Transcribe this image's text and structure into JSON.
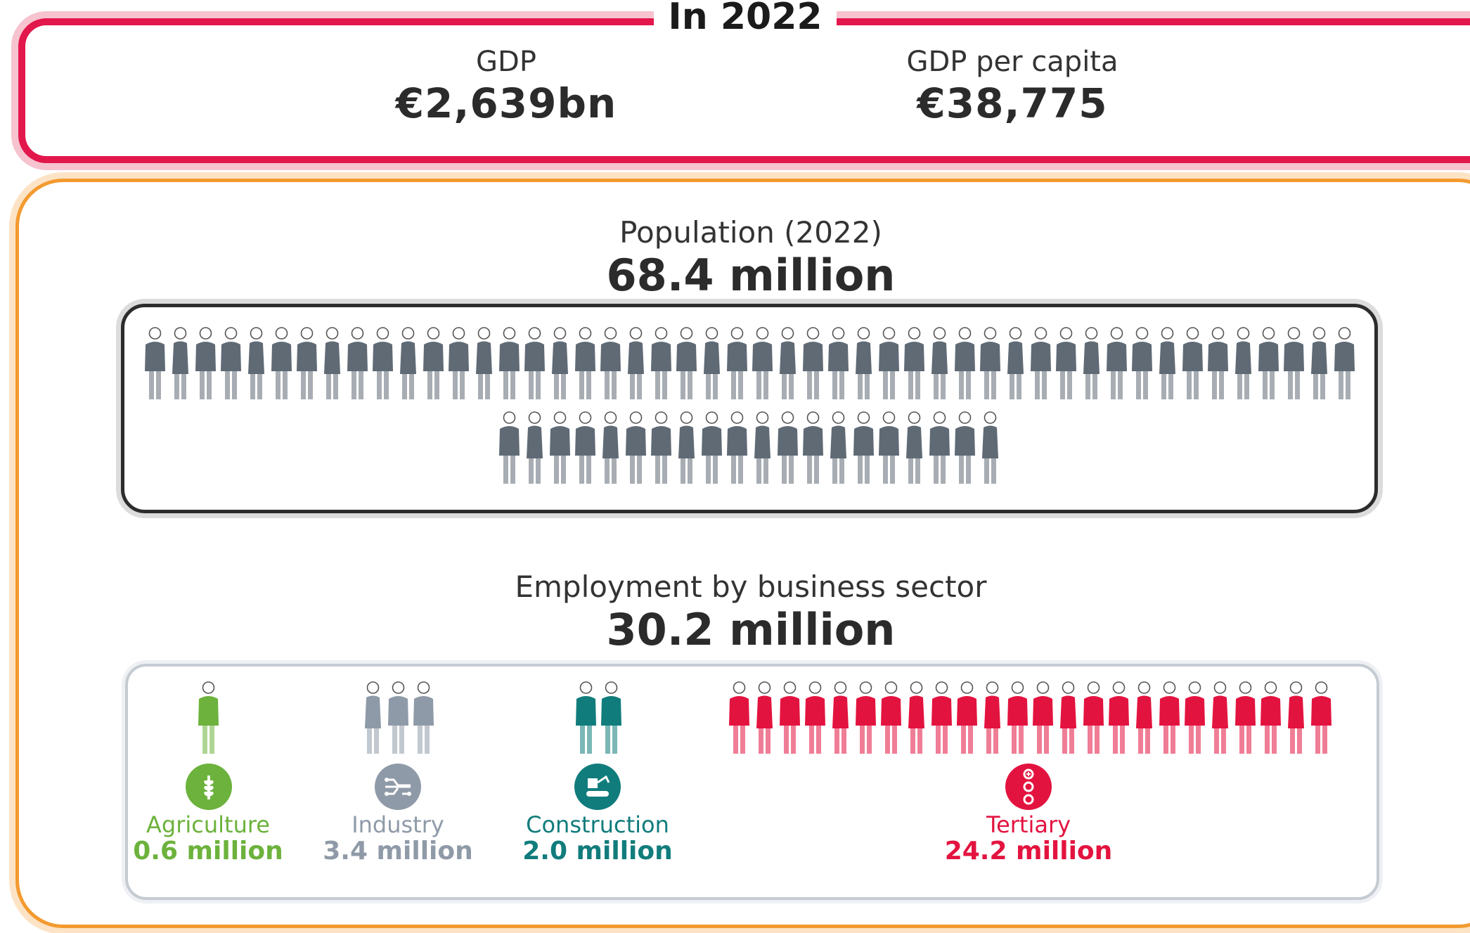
{
  "header": {
    "heading": "In 2022",
    "gdp": {
      "label": "GDP",
      "value": "€2,639bn"
    },
    "gdp_per_capita": {
      "label": "GDP per capita",
      "value": "€38,775"
    }
  },
  "population": {
    "label": "Population (2022)",
    "value": "68.4 million",
    "icon_count": 68,
    "row_counts": [
      48,
      20
    ],
    "color": "#5f6a75"
  },
  "employment": {
    "label": "Employment by business sector",
    "value": "30.2 million",
    "sectors": [
      {
        "key": "agriculture",
        "label": "Agriculture",
        "value": "0.6 million",
        "icon_count": 1,
        "color": "#6cb23c",
        "icon": "wheat-icon"
      },
      {
        "key": "industry",
        "label": "Industry",
        "value": "3.4 million",
        "icon_count": 3,
        "color": "#8f9aa8",
        "icon": "circuit-icon"
      },
      {
        "key": "construction",
        "label": "Construction",
        "value": "2.0 million",
        "icon_count": 2,
        "color": "#117c7c",
        "icon": "excavator-icon"
      },
      {
        "key": "tertiary",
        "label": "Tertiary",
        "value": "24.2 million",
        "icon_count": 24,
        "color": "#e3133f",
        "icon": "services-icon"
      }
    ]
  }
}
